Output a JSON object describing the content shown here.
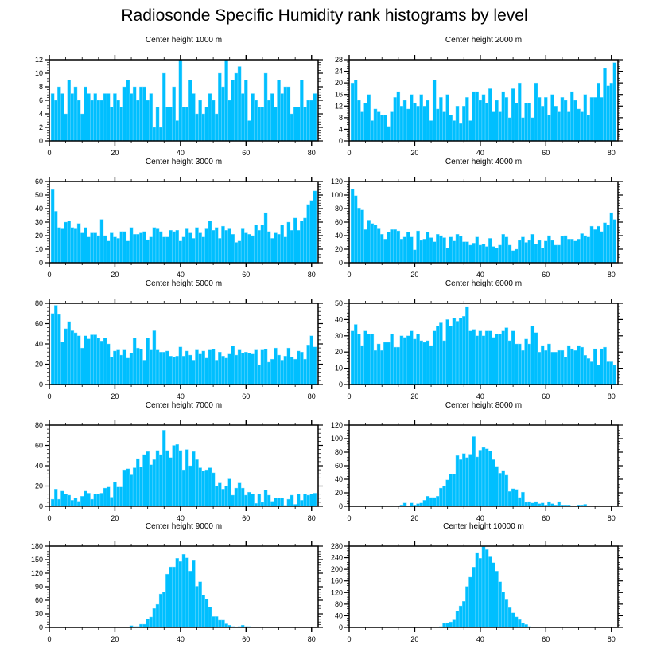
{
  "title": "Radiosonde Specific Humidity rank histograms by level",
  "colors": {
    "bar": "#00BFFF",
    "bar_edge": "#7fdcff",
    "axis": "#000000"
  },
  "chart_data": [
    {
      "type": "bar",
      "title": "Center height 1000 m",
      "xlabel": "",
      "ylabel": "",
      "xlim": [
        0,
        82
      ],
      "ylim": [
        0,
        12
      ],
      "xticks": [
        0,
        20,
        40,
        60,
        80
      ],
      "yticks": [
        0,
        2,
        4,
        6,
        8,
        10,
        12
      ],
      "values": [
        7,
        6,
        8,
        7,
        4,
        9,
        7,
        8,
        6,
        4,
        8,
        7,
        6,
        7,
        6,
        6,
        7,
        7,
        5,
        7,
        6,
        5,
        8,
        9,
        7,
        8,
        6,
        8,
        8,
        6,
        7,
        2,
        5,
        2,
        10,
        5,
        5,
        8,
        3,
        12,
        5,
        5,
        9,
        7,
        4,
        6,
        4,
        5,
        7,
        6,
        4,
        10,
        8,
        12,
        6,
        9,
        10,
        11,
        7,
        9,
        3,
        7,
        6,
        5,
        5,
        10,
        6,
        7,
        5,
        9,
        7,
        8,
        8,
        4,
        5,
        5,
        9,
        5,
        6,
        6,
        7
      ]
    },
    {
      "type": "bar",
      "title": "Center height 2000 m",
      "xlabel": "",
      "ylabel": "",
      "xlim": [
        0,
        82
      ],
      "ylim": [
        0,
        28
      ],
      "xticks": [
        0,
        20,
        40,
        60,
        80
      ],
      "yticks": [
        0,
        4,
        8,
        12,
        16,
        20,
        24,
        28
      ],
      "values": [
        20,
        21,
        14,
        10,
        13,
        16,
        7,
        11,
        10,
        9,
        9,
        5,
        10,
        15,
        17,
        12,
        14,
        11,
        16,
        13,
        12,
        16,
        12,
        14,
        7,
        21,
        11,
        15,
        10,
        16,
        9,
        7,
        12,
        6,
        12,
        15,
        7,
        17,
        17,
        14,
        16,
        13,
        18,
        10,
        14,
        10,
        17,
        15,
        8,
        18,
        13,
        20,
        8,
        13,
        13,
        8,
        20,
        15,
        12,
        15,
        9,
        16,
        12,
        10,
        15,
        14,
        10,
        17,
        14,
        11,
        10,
        16,
        9,
        15,
        15,
        20,
        15,
        25,
        19,
        20,
        27
      ]
    },
    {
      "type": "bar",
      "title": "Center height 3000 m",
      "xlabel": "",
      "ylabel": "",
      "xlim": [
        0,
        82
      ],
      "ylim": [
        0,
        60
      ],
      "xticks": [
        0,
        20,
        40,
        60,
        80
      ],
      "yticks": [
        0,
        10,
        20,
        30,
        40,
        50,
        60
      ],
      "values": [
        54,
        38,
        26,
        25,
        30,
        31,
        26,
        25,
        29,
        22,
        26,
        19,
        22,
        22,
        20,
        32,
        20,
        16,
        22,
        19,
        18,
        23,
        23,
        16,
        26,
        21,
        21,
        22,
        23,
        17,
        19,
        26,
        25,
        23,
        19,
        19,
        24,
        23,
        24,
        16,
        19,
        25,
        22,
        18,
        26,
        22,
        19,
        25,
        31,
        24,
        26,
        18,
        27,
        24,
        25,
        21,
        15,
        16,
        25,
        22,
        21,
        20,
        28,
        24,
        28,
        37,
        23,
        18,
        22,
        21,
        28,
        19,
        30,
        24,
        33,
        24,
        31,
        33,
        43,
        46,
        53
      ]
    },
    {
      "type": "bar",
      "title": "Center height 4000 m",
      "xlabel": "",
      "ylabel": "",
      "xlim": [
        0,
        82
      ],
      "ylim": [
        0,
        120
      ],
      "xticks": [
        0,
        20,
        40,
        60,
        80
      ],
      "yticks": [
        0,
        20,
        40,
        60,
        80,
        100,
        120
      ],
      "values": [
        109,
        99,
        81,
        78,
        49,
        63,
        58,
        56,
        50,
        42,
        35,
        45,
        49,
        49,
        47,
        35,
        38,
        45,
        38,
        19,
        47,
        33,
        35,
        45,
        37,
        31,
        42,
        40,
        37,
        22,
        38,
        32,
        42,
        39,
        31,
        31,
        26,
        29,
        38,
        26,
        28,
        24,
        36,
        24,
        22,
        26,
        42,
        38,
        26,
        18,
        20,
        33,
        38,
        30,
        33,
        42,
        28,
        33,
        22,
        32,
        40,
        33,
        26,
        26,
        39,
        40,
        35,
        35,
        32,
        35,
        43,
        40,
        38,
        54,
        49,
        54,
        46,
        59,
        56,
        74,
        64
      ]
    },
    {
      "type": "bar",
      "title": "Center height 5000 m",
      "xlabel": "",
      "ylabel": "",
      "xlim": [
        0,
        82
      ],
      "ylim": [
        0,
        80
      ],
      "xticks": [
        0,
        20,
        40,
        60,
        80
      ],
      "yticks": [
        0,
        20,
        40,
        60,
        80
      ],
      "values": [
        70,
        78,
        69,
        42,
        55,
        62,
        53,
        51,
        48,
        36,
        48,
        45,
        49,
        49,
        46,
        43,
        46,
        40,
        27,
        33,
        34,
        29,
        34,
        26,
        31,
        46,
        36,
        35,
        24,
        46,
        34,
        53,
        34,
        32,
        32,
        33,
        28,
        27,
        28,
        37,
        28,
        33,
        29,
        24,
        34,
        30,
        33,
        26,
        34,
        35,
        24,
        32,
        28,
        26,
        30,
        38,
        29,
        34,
        31,
        32,
        31,
        30,
        34,
        19,
        34,
        35,
        22,
        25,
        36,
        29,
        24,
        28,
        36,
        27,
        25,
        33,
        32,
        25,
        39,
        48,
        37
      ]
    },
    {
      "type": "bar",
      "title": "Center height 6000 m",
      "xlabel": "",
      "ylabel": "",
      "xlim": [
        0,
        82
      ],
      "ylim": [
        0,
        50
      ],
      "xticks": [
        0,
        20,
        40,
        60,
        80
      ],
      "yticks": [
        0,
        10,
        20,
        30,
        40,
        50
      ],
      "values": [
        33,
        37,
        31,
        24,
        33,
        31,
        31,
        21,
        25,
        21,
        26,
        26,
        31,
        23,
        23,
        30,
        29,
        30,
        33,
        28,
        31,
        27,
        26,
        27,
        24,
        33,
        36,
        38,
        27,
        40,
        36,
        41,
        39,
        41,
        42,
        48,
        33,
        34,
        30,
        33,
        30,
        33,
        33,
        29,
        31,
        31,
        33,
        35,
        27,
        33,
        25,
        25,
        21,
        28,
        25,
        36,
        32,
        20,
        24,
        21,
        25,
        20,
        20,
        21,
        21,
        17,
        24,
        22,
        21,
        24,
        23,
        18,
        16,
        14,
        22,
        12,
        22,
        23,
        14,
        14,
        12
      ]
    },
    {
      "type": "bar",
      "title": "Center height 7000 m",
      "xlabel": "",
      "ylabel": "",
      "xlim": [
        0,
        82
      ],
      "ylim": [
        0,
        80
      ],
      "xticks": [
        0,
        20,
        40,
        60,
        80
      ],
      "yticks": [
        0,
        20,
        40,
        60,
        80
      ],
      "values": [
        7,
        17,
        7,
        15,
        12,
        11,
        6,
        8,
        5,
        10,
        15,
        13,
        7,
        12,
        12,
        13,
        18,
        19,
        9,
        24,
        19,
        19,
        36,
        37,
        31,
        38,
        47,
        39,
        51,
        54,
        41,
        46,
        55,
        51,
        75,
        55,
        48,
        60,
        61,
        55,
        36,
        56,
        40,
        54,
        46,
        38,
        35,
        36,
        38,
        33,
        20,
        23,
        17,
        20,
        27,
        11,
        18,
        23,
        18,
        11,
        14,
        12,
        3,
        12,
        4,
        16,
        11,
        5,
        8,
        8,
        8,
        1,
        7,
        11,
        2,
        12,
        6,
        12,
        11,
        12,
        13
      ]
    },
    {
      "type": "bar",
      "title": "Center height 8000 m",
      "xlabel": "",
      "ylabel": "",
      "xlim": [
        0,
        82
      ],
      "ylim": [
        0,
        120
      ],
      "xticks": [
        0,
        20,
        40,
        60,
        80
      ],
      "yticks": [
        0,
        20,
        40,
        60,
        80,
        100,
        120
      ],
      "values": [
        0,
        0,
        0,
        0,
        0,
        0,
        0,
        0,
        0,
        1,
        0,
        0,
        1,
        0,
        0,
        2,
        5,
        0,
        5,
        2,
        4,
        5,
        9,
        15,
        13,
        13,
        15,
        27,
        30,
        39,
        48,
        48,
        75,
        69,
        78,
        72,
        77,
        103,
        73,
        83,
        87,
        85,
        82,
        69,
        59,
        49,
        53,
        46,
        22,
        26,
        25,
        13,
        21,
        6,
        7,
        5,
        7,
        4,
        5,
        2,
        7,
        4,
        2,
        7,
        2,
        2,
        2,
        1,
        0,
        2,
        2,
        3,
        0,
        0,
        0,
        1,
        0,
        0,
        0,
        1,
        0
      ]
    },
    {
      "type": "bar",
      "title": "Center height 9000 m",
      "xlabel": "",
      "ylabel": "",
      "xlim": [
        0,
        82
      ],
      "ylim": [
        0,
        180
      ],
      "xticks": [
        0,
        20,
        40,
        60,
        80
      ],
      "yticks": [
        0,
        30,
        60,
        90,
        120,
        150,
        180
      ],
      "values": [
        0,
        0,
        0,
        0,
        0,
        0,
        0,
        0,
        0,
        0,
        0,
        0,
        0,
        0,
        0,
        0,
        0,
        0,
        0,
        0,
        1,
        0,
        0,
        1,
        4,
        2,
        2,
        7,
        7,
        18,
        23,
        42,
        51,
        74,
        78,
        118,
        134,
        134,
        153,
        146,
        162,
        154,
        125,
        148,
        91,
        101,
        71,
        63,
        45,
        24,
        24,
        16,
        16,
        8,
        5,
        2,
        0,
        2,
        5,
        2,
        2,
        0,
        0,
        0,
        0,
        0,
        0,
        1,
        0,
        0,
        0,
        0,
        0,
        0,
        0,
        0,
        0,
        0,
        0,
        0,
        0
      ]
    },
    {
      "type": "bar",
      "title": "Center height 10000 m",
      "xlabel": "",
      "ylabel": "",
      "xlim": [
        0,
        82
      ],
      "ylim": [
        0,
        280
      ],
      "xticks": [
        0,
        20,
        40,
        60,
        80
      ],
      "yticks": [
        0,
        40,
        80,
        120,
        160,
        200,
        240,
        280
      ],
      "values": [
        0,
        0,
        0,
        0,
        0,
        0,
        0,
        0,
        0,
        0,
        0,
        0,
        0,
        0,
        0,
        0,
        0,
        0,
        0,
        0,
        0,
        0,
        0,
        0,
        0,
        1,
        2,
        3,
        14,
        16,
        19,
        26,
        57,
        74,
        90,
        141,
        173,
        208,
        258,
        238,
        278,
        268,
        243,
        223,
        194,
        157,
        123,
        95,
        68,
        50,
        36,
        27,
        16,
        10,
        3,
        2,
        2,
        1,
        0,
        1,
        1,
        1,
        0,
        0,
        0,
        0,
        0,
        0,
        0,
        0,
        0,
        0,
        0,
        0,
        0,
        0,
        0,
        0,
        0,
        0,
        0
      ]
    }
  ]
}
